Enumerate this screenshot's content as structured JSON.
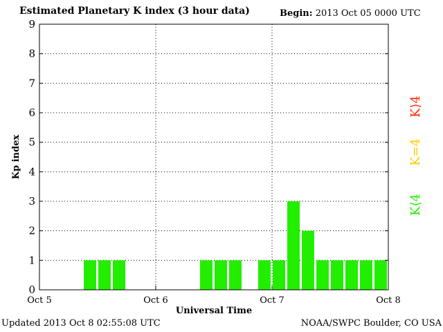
{
  "header": {
    "title": "Estimated Planetary K index (3 hour data)",
    "begin_label": "Begin:",
    "begin_value": "2013 Oct 05 0000 UTC"
  },
  "footer": {
    "updated": "Updated 2013 Oct  8 02:55:08 UTC",
    "credit": "NOAA/SWPC Boulder, CO USA"
  },
  "legend": {
    "high": {
      "label": "K⟩4",
      "color": "#ff2a00"
    },
    "equal": {
      "label": "K=4",
      "color": "#ffcc00"
    },
    "low": {
      "label": "K⟨4",
      "color": "#22ee00"
    }
  },
  "colors": {
    "bar": "#22ee00",
    "bar_edge": "#000000",
    "grid": "#000000",
    "axis": "#000000"
  },
  "chart_data": {
    "type": "bar",
    "title": "Estimated Planetary K index (3 hour data)",
    "xlabel": "Universal Time",
    "ylabel": "Kp index",
    "ylim": [
      0,
      9
    ],
    "yticks": [
      "0",
      "1",
      "2",
      "3",
      "4",
      "5",
      "6",
      "7",
      "8",
      "9"
    ],
    "xticks": [
      "Oct 5",
      "Oct 6",
      "Oct 7",
      "Oct 8"
    ],
    "xrange_days": [
      0,
      3
    ],
    "grid": true,
    "values": [
      0,
      0,
      0,
      1,
      1,
      1,
      0,
      0,
      0,
      0,
      0,
      1,
      1,
      1,
      0,
      1,
      1,
      3,
      2,
      1,
      1,
      1,
      1,
      1
    ]
  }
}
